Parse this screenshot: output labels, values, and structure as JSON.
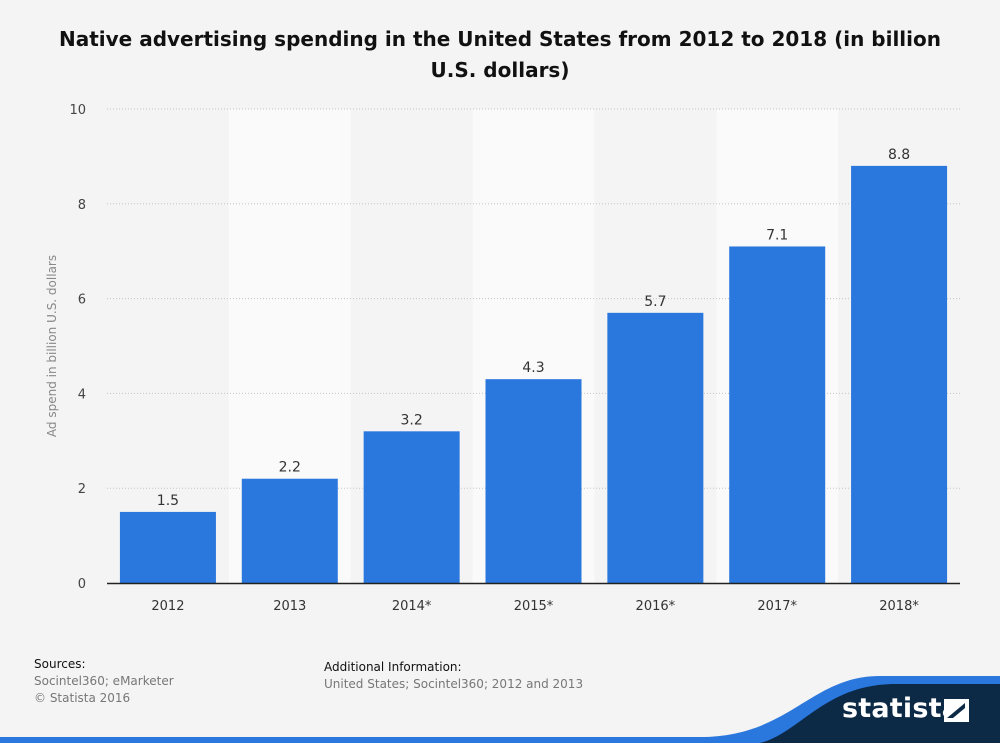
{
  "chart_data": {
    "type": "bar",
    "title": "Native advertising spending in the United States from 2012 to 2018 (in billion U.S. dollars)",
    "xlabel": "",
    "ylabel": "Ad spend in billion U.S. dollars",
    "categories": [
      "2012",
      "2013",
      "2014*",
      "2015*",
      "2016*",
      "2017*",
      "2018*"
    ],
    "values": [
      1.5,
      2.2,
      3.2,
      4.3,
      5.7,
      7.1,
      8.8
    ],
    "value_labels": [
      "1.5",
      "2.2",
      "3.2",
      "4.3",
      "5.7",
      "7.1",
      "8.8"
    ],
    "ylim": [
      0,
      10
    ],
    "yticks": [
      0,
      2,
      4,
      6,
      8,
      10
    ],
    "grid": true,
    "bar_color": "#2a77dd"
  },
  "footer": {
    "sources_label": "Sources:",
    "sources_lines": [
      "Socintel360; eMarketer",
      "© Statista 2016"
    ],
    "additional_label": "Additional Information:",
    "additional_text": "United States; Socintel360; 2012 and 2013"
  },
  "brand": {
    "name": "statista",
    "dark_color": "#0c2946",
    "accent_color": "#2a77dd"
  }
}
